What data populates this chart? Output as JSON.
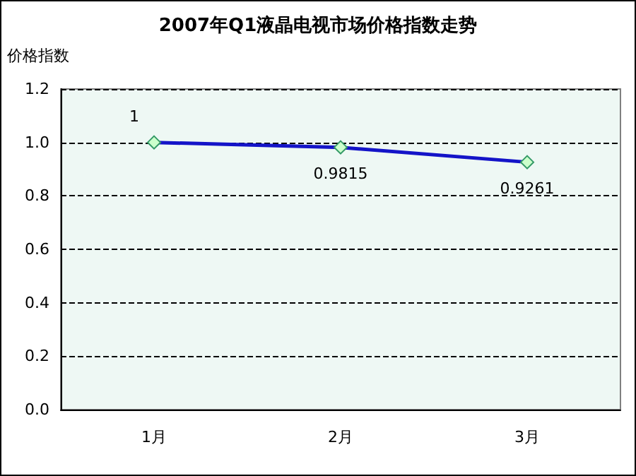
{
  "chart_data": {
    "type": "line",
    "title": "2007年Q1液晶电视市场价格指数走势",
    "ylabel": "价格指数",
    "categories": [
      "1月",
      "2月",
      "3月"
    ],
    "series": [
      {
        "color": "#1414c8",
        "values": [
          1,
          0.9815,
          0.9261
        ]
      }
    ],
    "ylim": [
      0,
      1.2
    ],
    "yticks": [
      {
        "value": 0,
        "label": "0.0"
      },
      0.2,
      0.4,
      0.6,
      0.8,
      {
        "value": 1,
        "label": "1.0"
      },
      1.2
    ],
    "grid": "y",
    "marker": "diamond",
    "line_style": "solid",
    "data_labels": true
  }
}
